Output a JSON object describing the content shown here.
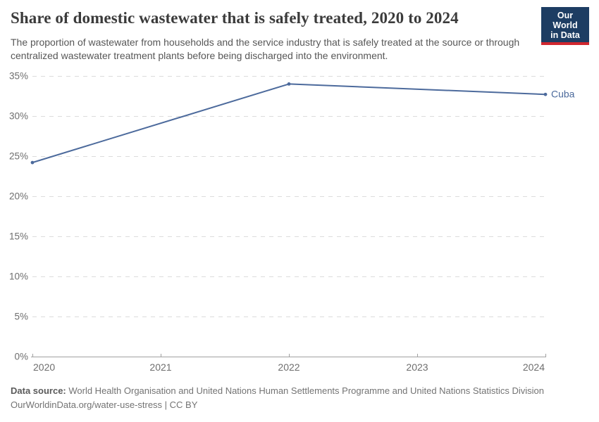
{
  "header": {
    "title": "Share of domestic wastewater that is safely treated, 2020 to 2024",
    "subtitle": "The proportion of wastewater from households and the service industry that is safely treated at the source or through centralized wastewater treatment plants before being discharged into the environment.",
    "logo": {
      "line1": "Our World",
      "line2": "in Data",
      "bg_color": "#1d3d63",
      "accent_color": "#d0272f"
    }
  },
  "chart_data": {
    "type": "line",
    "title": "Share of domestic wastewater that is safely treated, 2020 to 2024",
    "x": [
      2020,
      2022,
      2024
    ],
    "series": [
      {
        "name": "Cuba",
        "color": "#4C6A9C",
        "values": [
          24.2,
          34.0,
          32.7
        ]
      }
    ],
    "xlim": [
      2020,
      2024
    ],
    "ylim": [
      0,
      35
    ],
    "x_ticks": [
      2020,
      2021,
      2022,
      2023,
      2024
    ],
    "y_ticks": [
      0,
      5,
      10,
      15,
      20,
      25,
      30,
      35
    ],
    "y_suffix": "%",
    "grid": "horizontal-dashed",
    "legend": "label-at-line-end",
    "colors": {
      "gridline": "#dcdcdc",
      "axis": "#a1a1a1",
      "tick_text": "#6e6e6e"
    }
  },
  "footer": {
    "datasource_label": "Data source:",
    "datasource_text": " World Health Organisation and United Nations Human Settlements Programme and United Nations Statistics Division",
    "license_line": "OurWorldinData.org/water-use-stress | CC BY"
  }
}
